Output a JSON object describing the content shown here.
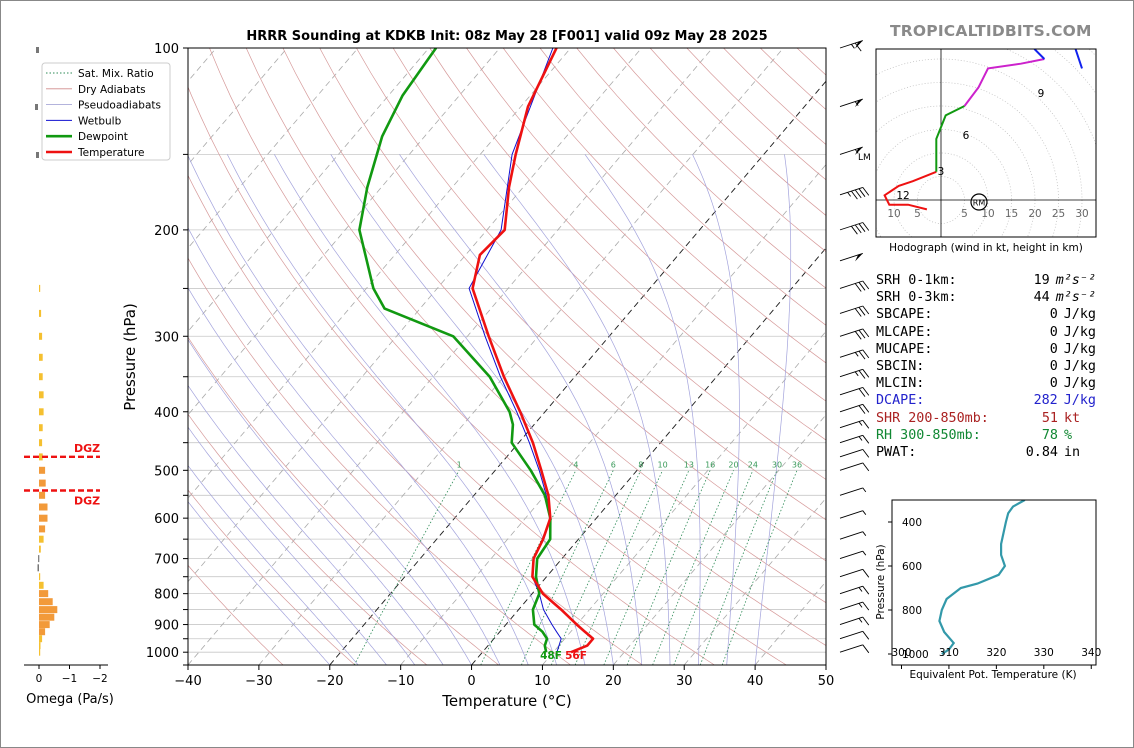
{
  "brand": "TROPICALTIDBITS.COM",
  "skewt": {
    "title": "HRRR Sounding at KDKB Init: 08z May 28 [F001] valid 09z May 28 2025",
    "xlabel": "Temperature (°C)",
    "ylabel": "Pressure (hPa)",
    "x_ticks": [
      "−40",
      "−30",
      "−20",
      "−10",
      "0",
      "10",
      "20",
      "30",
      "40",
      "50"
    ],
    "p_ticks": [
      "100",
      "200",
      "300",
      "400",
      "500",
      "600",
      "700",
      "800",
      "900",
      "1000"
    ],
    "mixing_ratio_labels": [
      "1",
      "4",
      "6",
      "8",
      "10",
      "13",
      "16",
      "20",
      "24",
      "30",
      "36"
    ],
    "surface_dewpoint_label": "48F",
    "surface_temp_label": "56F",
    "lm_label": "LM"
  },
  "legend": [
    {
      "label": "Sat. Mix. Ratio",
      "color": "#2e8b57"
    },
    {
      "label": "Dry Adiabats",
      "color": "#d08a8a"
    },
    {
      "label": "Pseudoadiabats",
      "color": "#9a9ad0"
    },
    {
      "label": "Wetbulb",
      "color": "#1010d0"
    },
    {
      "label": "Dewpoint",
      "color": "#119911"
    },
    {
      "label": "Temperature",
      "color": "#ee1111"
    }
  ],
  "omega": {
    "xlabel": "Omega (Pa/s)",
    "ticks": [
      "0",
      "−1",
      "−2"
    ],
    "dgz_label": "DGZ"
  },
  "hodograph": {
    "caption": "Hodograph (wind in kt, height in km)",
    "ring_labels": [
      "10",
      "5",
      "5",
      "10",
      "15",
      "20",
      "25",
      "30"
    ],
    "height_labels": [
      "3",
      "6",
      "9",
      "12"
    ],
    "rm_label": "RM"
  },
  "stats": [
    {
      "label": "SRH 0-1km:",
      "value": "19",
      "unit": "m²s⁻²",
      "color": "#000000"
    },
    {
      "label": "SRH 0-3km:",
      "value": "44",
      "unit": "m²s⁻²",
      "color": "#000000"
    },
    {
      "label": "SBCAPE:",
      "value": "0",
      "unit": "J/kg",
      "color": "#000000"
    },
    {
      "label": "MLCAPE:",
      "value": "0",
      "unit": "J/kg",
      "color": "#000000"
    },
    {
      "label": "MUCAPE:",
      "value": "0",
      "unit": "J/kg",
      "color": "#000000"
    },
    {
      "label": "SBCIN:",
      "value": "0",
      "unit": "J/kg",
      "color": "#000000"
    },
    {
      "label": "MLCIN:",
      "value": "0",
      "unit": "J/kg",
      "color": "#000000"
    },
    {
      "label": "DCAPE:",
      "value": "282",
      "unit": "J/kg",
      "color": "#2222cc"
    },
    {
      "label": "SHR 200-850mb:",
      "value": "51",
      "unit": "kt",
      "color": "#aa2222"
    },
    {
      "label": "RH 300-850mb:",
      "value": "78",
      "unit": "%",
      "color": "#118833"
    },
    {
      "label": "PWAT:",
      "value": "0.84",
      "unit": "in",
      "color": "#000000"
    }
  ],
  "theta_e_panel": {
    "xlabel": "Equivalent Pot. Temperature (K)",
    "ylabel": "Pressure (hPa)",
    "x_ticks": [
      "300",
      "310",
      "320",
      "330",
      "340"
    ],
    "y_ticks": [
      "400",
      "600",
      "800",
      "1000"
    ]
  },
  "chart_data": [
    {
      "type": "line",
      "title": "HRRR Sounding at KDKB Init: 08z May 28 [F001] valid 09z May 28 2025",
      "xlabel": "Temperature (°C)",
      "ylabel": "Pressure (hPa)",
      "xlim": [
        -40,
        50
      ],
      "ylim": [
        1050,
        100
      ],
      "y_scale": "log",
      "series": [
        {
          "name": "Temperature",
          "color": "#ee1111",
          "p": [
            1000,
            975,
            950,
            925,
            900,
            850,
            800,
            750,
            700,
            650,
            600,
            550,
            500,
            450,
            400,
            350,
            300,
            250,
            220,
            200,
            170,
            150,
            125,
            100
          ],
          "t": [
            12.5,
            14.0,
            14.0,
            12.0,
            10.0,
            6.0,
            1.5,
            -2.0,
            -4.0,
            -5.0,
            -6.5,
            -9.5,
            -13.5,
            -18.0,
            -23.5,
            -30.0,
            -37.0,
            -45.0,
            -48.0,
            -47.5,
            -52.0,
            -55.0,
            -59.0,
            -62.0
          ]
        },
        {
          "name": "Dewpoint",
          "color": "#119911",
          "p": [
            1000,
            975,
            950,
            925,
            900,
            850,
            800,
            750,
            700,
            650,
            600,
            550,
            500,
            450,
            420,
            400,
            350,
            300,
            270,
            250,
            200,
            170,
            140,
            120,
            100
          ],
          "t": [
            9.0,
            8.0,
            7.5,
            6.0,
            4.0,
            2.0,
            1.0,
            -1.5,
            -3.5,
            -4.0,
            -6.5,
            -10.0,
            -15.0,
            -21.0,
            -23.0,
            -25.0,
            -32.0,
            -42.0,
            -55.0,
            -59.0,
            -68.0,
            -72.0,
            -76.0,
            -78.0,
            -79.0
          ]
        },
        {
          "name": "Wetbulb",
          "color": "#1010d0",
          "p": [
            1000,
            975,
            950,
            925,
            900,
            850,
            800,
            750,
            700,
            650,
            600,
            550,
            500,
            450,
            400,
            350,
            300,
            250,
            200,
            150,
            100
          ],
          "t": [
            10.5,
            10.0,
            9.5,
            8.0,
            6.5,
            3.5,
            1.0,
            -2.0,
            -4.0,
            -5.0,
            -6.5,
            -9.8,
            -13.8,
            -18.5,
            -24.0,
            -30.5,
            -37.5,
            -45.5,
            -48.0,
            -55.5,
            -62.5
          ]
        }
      ]
    },
    {
      "type": "bar",
      "title": "",
      "xlabel": "Omega (Pa/s)",
      "xlim": [
        0,
        -2
      ],
      "categories_p": [
        250,
        275,
        300,
        325,
        350,
        375,
        400,
        425,
        450,
        475,
        500,
        525,
        550,
        575,
        600,
        625,
        650,
        675,
        700,
        725,
        750,
        775,
        800,
        825,
        850,
        875,
        900,
        925,
        950,
        975,
        1000
      ],
      "values": [
        -0.02,
        -0.07,
        -0.1,
        -0.12,
        -0.12,
        -0.15,
        -0.15,
        -0.12,
        -0.1,
        -0.12,
        -0.2,
        -0.22,
        -0.2,
        -0.28,
        -0.28,
        -0.2,
        -0.15,
        -0.06,
        0.03,
        0.05,
        -0.03,
        -0.15,
        -0.3,
        -0.45,
        -0.6,
        -0.5,
        -0.35,
        -0.2,
        -0.1,
        -0.05,
        -0.02
      ],
      "dgz_p": [
        475,
        540
      ]
    },
    {
      "type": "line",
      "title": "",
      "xlabel": "Equivalent Pot. Temperature (K)",
      "ylabel": "Pressure (hPa)",
      "xlim": [
        298,
        341
      ],
      "ylim": [
        1050,
        300
      ],
      "series": [
        {
          "name": "",
          "color": "#3399aa",
          "p": [
            300,
            330,
            360,
            400,
            450,
            500,
            550,
            600,
            640,
            680,
            700,
            750,
            800,
            850,
            900,
            950,
            980,
            1000
          ],
          "theta_e": [
            326.0,
            323.5,
            322.5,
            322.0,
            321.5,
            321.0,
            321.0,
            321.8,
            320.5,
            316.0,
            312.5,
            309.5,
            308.5,
            308.0,
            309.0,
            311.0,
            310.0,
            308.5
          ]
        }
      ]
    },
    {
      "type": "line",
      "title": "",
      "xlabel": "",
      "ylabel": "",
      "series": [
        {
          "name": "",
          "color": "#ee1111",
          "u": [
            -3,
            -7,
            -11,
            -12,
            -9,
            -6,
            -1
          ],
          "v": [
            -2,
            -1,
            -1,
            1,
            3,
            4,
            6
          ],
          "h": [
            0,
            0.3,
            0.8,
            1.5,
            2,
            2.5,
            3
          ]
        },
        {
          "name": "",
          "color": "#119911",
          "u": [
            -1,
            -1,
            1,
            5
          ],
          "v": [
            6,
            13,
            18,
            20
          ],
          "h": [
            3,
            4,
            5,
            6
          ]
        },
        {
          "name": "",
          "color": "#cc22cc",
          "u": [
            5,
            8,
            10,
            17,
            22
          ],
          "v": [
            20,
            24,
            28,
            29,
            30
          ],
          "h": [
            6,
            7,
            8,
            8.5,
            9
          ]
        },
        {
          "name": "",
          "color": "#1122ee",
          "u": [
            22,
            20,
            15,
            25,
            30
          ],
          "v": [
            30,
            32,
            38,
            43,
            28
          ],
          "h": [
            9,
            10,
            11,
            12,
            13
          ]
        }
      ]
    }
  ]
}
